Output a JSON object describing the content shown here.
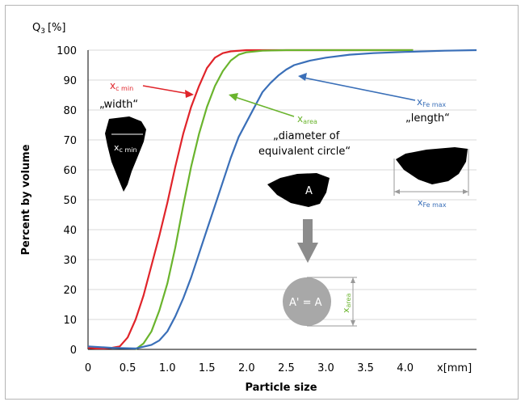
{
  "chart_data": {
    "type": "line",
    "title": "",
    "y_axis_header": "Q",
    "y_axis_header_sub": "3",
    "y_axis_header_unit": "[%]",
    "xlabel": "Particle size",
    "ylabel": "Percent by volume",
    "x_unit_label": "x[mm]",
    "xlim": [
      0,
      4.9
    ],
    "ylim": [
      0,
      100
    ],
    "xticks": [
      "0",
      "0.5",
      "1.0",
      "1.5",
      "2.0",
      "2.5",
      "3.0",
      "3.5",
      "4.0"
    ],
    "yticks": [
      "0",
      "10",
      "20",
      "30",
      "40",
      "50",
      "60",
      "70",
      "80",
      "90",
      "100"
    ],
    "series": [
      {
        "key": "xc_min",
        "color": "#e0242a",
        "points": [
          [
            0,
            0.5
          ],
          [
            0.1,
            0.3
          ],
          [
            0.2,
            0.3
          ],
          [
            0.3,
            0.5
          ],
          [
            0.4,
            1
          ],
          [
            0.5,
            4
          ],
          [
            0.6,
            10
          ],
          [
            0.7,
            18
          ],
          [
            0.8,
            28
          ],
          [
            0.9,
            38
          ],
          [
            1.0,
            49
          ],
          [
            1.1,
            61
          ],
          [
            1.2,
            72
          ],
          [
            1.3,
            81
          ],
          [
            1.4,
            88
          ],
          [
            1.5,
            94
          ],
          [
            1.6,
            97.5
          ],
          [
            1.7,
            99
          ],
          [
            1.8,
            99.6
          ],
          [
            2.0,
            100
          ],
          [
            2.5,
            100
          ],
          [
            3.0,
            100
          ],
          [
            3.5,
            100
          ],
          [
            4.1,
            100
          ]
        ]
      },
      {
        "key": "xarea",
        "color": "#6ab42d",
        "points": [
          [
            0.6,
            0
          ],
          [
            0.7,
            2
          ],
          [
            0.8,
            6
          ],
          [
            0.9,
            13
          ],
          [
            1.0,
            22
          ],
          [
            1.1,
            34
          ],
          [
            1.2,
            48
          ],
          [
            1.3,
            61
          ],
          [
            1.4,
            72
          ],
          [
            1.5,
            81
          ],
          [
            1.6,
            88
          ],
          [
            1.7,
            93
          ],
          [
            1.8,
            96.5
          ],
          [
            1.9,
            98.5
          ],
          [
            2.0,
            99.3
          ],
          [
            2.2,
            99.8
          ],
          [
            2.5,
            100
          ],
          [
            3.0,
            100
          ],
          [
            3.5,
            100
          ],
          [
            4.1,
            100
          ]
        ]
      },
      {
        "key": "xfe_max",
        "color": "#3a6fb8",
        "points": [
          [
            0,
            1
          ],
          [
            0.3,
            0.5
          ],
          [
            0.6,
            0.3
          ],
          [
            0.8,
            1.5
          ],
          [
            0.9,
            3
          ],
          [
            1.0,
            6
          ],
          [
            1.1,
            11
          ],
          [
            1.2,
            17
          ],
          [
            1.3,
            24
          ],
          [
            1.4,
            32
          ],
          [
            1.5,
            40
          ],
          [
            1.6,
            48
          ],
          [
            1.7,
            56
          ],
          [
            1.8,
            64
          ],
          [
            1.9,
            71
          ],
          [
            2.0,
            76
          ],
          [
            2.1,
            81
          ],
          [
            2.2,
            86
          ],
          [
            2.3,
            89
          ],
          [
            2.4,
            91.5
          ],
          [
            2.5,
            93.5
          ],
          [
            2.6,
            95
          ],
          [
            2.8,
            96.5
          ],
          [
            3.0,
            97.5
          ],
          [
            3.3,
            98.5
          ],
          [
            3.6,
            99
          ],
          [
            4.0,
            99.4
          ],
          [
            4.5,
            99.8
          ],
          [
            4.9,
            100
          ]
        ]
      }
    ],
    "annotations": {
      "xc_min_label": "x",
      "xc_min_sub": "c min",
      "width_label": "„width“",
      "xarea_label": "x",
      "xarea_sub": "area",
      "diameter_line1": "„diameter of",
      "diameter_line2": "equivalent circle“",
      "xfe_label": "x",
      "xfe_sub": "Fe max",
      "length_label": "„length“",
      "shape_a_label": "A",
      "circle_label": "A' = A"
    }
  }
}
